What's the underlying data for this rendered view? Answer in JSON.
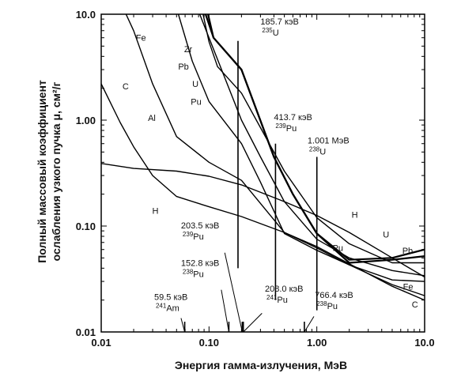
{
  "chart_data": {
    "type": "line",
    "xlabel": "Энергия гамма-излучения, МэВ",
    "ylabel_line1": "Полный массовый коэффициент",
    "ylabel_line2": "ослабления узкого пучка μ, см²/г",
    "xscale": "log",
    "yscale": "log",
    "xlim": [
      0.01,
      10.0
    ],
    "ylim": [
      0.01,
      10.0
    ],
    "x_ticks": [
      {
        "value": 0.01,
        "label": "0.01"
      },
      {
        "value": 0.1,
        "label": "0.10"
      },
      {
        "value": 1.0,
        "label": "1.00"
      },
      {
        "value": 10.0,
        "label": "10.0"
      }
    ],
    "y_ticks": [
      {
        "value": 0.01,
        "label": "0.01"
      },
      {
        "value": 0.1,
        "label": "0.10"
      },
      {
        "value": 1.0,
        "label": "1.00"
      },
      {
        "value": 10.0,
        "label": "10.0"
      }
    ],
    "series": [
      {
        "name": "H",
        "label_at": [
          0.034,
          0.13
        ],
        "points": [
          [
            0.01,
            0.39
          ],
          [
            0.02,
            0.35
          ],
          [
            0.05,
            0.33
          ],
          [
            0.1,
            0.295
          ],
          [
            0.2,
            0.245
          ],
          [
            0.5,
            0.17
          ],
          [
            1.0,
            0.126
          ],
          [
            2.0,
            0.087
          ],
          [
            5.0,
            0.05
          ],
          [
            10.0,
            0.033
          ]
        ]
      },
      {
        "name": "C",
        "label_at": [
          0.018,
          1.95
        ],
        "points": [
          [
            0.01,
            2.2
          ],
          [
            0.015,
            0.95
          ],
          [
            0.02,
            0.56
          ],
          [
            0.03,
            0.3
          ],
          [
            0.05,
            0.19
          ],
          [
            0.1,
            0.152
          ],
          [
            0.2,
            0.123
          ],
          [
            0.5,
            0.087
          ],
          [
            1.0,
            0.064
          ],
          [
            2.0,
            0.044
          ],
          [
            5.0,
            0.027
          ],
          [
            10.0,
            0.02
          ]
        ]
      },
      {
        "name": "Al",
        "label_at": [
          0.032,
          0.98
        ],
        "points": [
          [
            0.017,
            10.0
          ],
          [
            0.02,
            7.0
          ],
          [
            0.03,
            2.2
          ],
          [
            0.05,
            0.7
          ],
          [
            0.1,
            0.4
          ],
          [
            0.2,
            0.27
          ],
          [
            0.5,
            0.087
          ],
          [
            1.0,
            0.062
          ],
          [
            2.0,
            0.043
          ],
          [
            5.0,
            0.028
          ],
          [
            10.0,
            0.022
          ]
        ]
      },
      {
        "name": "Fe",
        "label_at": [
          0.026,
          5.6
        ],
        "points": [
          [
            0.052,
            10.0
          ],
          [
            0.07,
            3.6
          ],
          [
            0.1,
            1.5
          ],
          [
            0.2,
            0.6
          ],
          [
            0.3,
            0.26
          ],
          [
            0.5,
            0.085
          ],
          [
            1.0,
            0.059
          ],
          [
            2.0,
            0.043
          ],
          [
            5.0,
            0.031
          ],
          [
            10.0,
            0.03
          ]
        ]
      },
      {
        "name": "Zr",
        "label_at": [
          0.07,
          4.4
        ],
        "points": [
          [
            0.082,
            10.0
          ],
          [
            0.1,
            6.0
          ],
          [
            0.2,
            1.0
          ],
          [
            0.3,
            0.45
          ],
          [
            0.5,
            0.17
          ],
          [
            1.0,
            0.075
          ],
          [
            2.0,
            0.05
          ],
          [
            5.0,
            0.038
          ],
          [
            10.0,
            0.034
          ]
        ]
      },
      {
        "name": "Pb",
        "label_at": [
          0.065,
          3.0
        ],
        "points": [
          [
            0.088,
            10.0
          ],
          [
            0.1,
            5.5
          ],
          [
            0.12,
            3.2
          ],
          [
            0.2,
            1.8
          ],
          [
            0.5,
            0.33
          ],
          [
            1.0,
            0.12
          ],
          [
            2.0,
            0.068
          ],
          [
            5.0,
            0.045
          ],
          [
            10.0,
            0.045
          ]
        ]
      },
      {
        "name": "U",
        "label_at": [
          0.08,
          2.05
        ],
        "points": [
          [
            0.093,
            10.0
          ],
          [
            0.11,
            6.0
          ],
          [
            0.2,
            3.0
          ],
          [
            0.4,
            0.45
          ],
          [
            0.6,
            0.2
          ],
          [
            1.0,
            0.085
          ],
          [
            2.0,
            0.048
          ],
          [
            5.0,
            0.05
          ],
          [
            10.0,
            0.06
          ]
        ]
      },
      {
        "name": "Pu",
        "label_at": [
          0.085,
          1.4
        ],
        "points": [
          [
            0.098,
            10.0
          ],
          [
            0.11,
            6.0
          ],
          [
            0.2,
            3.0
          ],
          [
            0.4,
            0.45
          ],
          [
            0.6,
            0.2
          ],
          [
            1.0,
            0.085
          ],
          [
            2.0,
            0.045
          ],
          [
            5.0,
            0.048
          ],
          [
            10.0,
            0.052
          ]
        ]
      }
    ],
    "edge_labels": [
      {
        "name": "Pu",
        "at": [
          1.4,
          0.058
        ]
      },
      {
        "name": "U",
        "at": [
          4.1,
          0.078
        ]
      },
      {
        "name": "Pb",
        "at": [
          6.2,
          0.055
        ]
      },
      {
        "name": "H",
        "at": [
          2.1,
          0.12
        ]
      },
      {
        "name": "Fe",
        "at": [
          6.3,
          0.025
        ]
      },
      {
        "name": "C",
        "at": [
          7.6,
          0.017
        ]
      }
    ],
    "annotations": [
      {
        "energy": "185.7 кэВ",
        "isotope_mass": "235",
        "isotope": "U",
        "x": 0.1857,
        "line_top": 5.6,
        "line_bottom": 0.04,
        "text_at": [
          0.3,
          8.0
        ]
      },
      {
        "energy": "413.7 кэВ",
        "isotope_mass": "239",
        "isotope": "Pu",
        "x": 0.4137,
        "line_top": 0.6,
        "line_bottom": 0.02,
        "text_at": [
          0.4,
          1.0
        ]
      },
      {
        "energy": "1.001 МэВ",
        "isotope_mass": "238",
        "isotope": "U",
        "x": 1.001,
        "line_top": 0.45,
        "line_bottom": 0.016,
        "text_at": [
          0.82,
          0.6
        ]
      },
      {
        "energy": "203.5 кэВ",
        "isotope_mass": "239",
        "isotope": "Pu",
        "x": 0.2035,
        "line_bottom": 0.01,
        "text_at": [
          0.055,
          0.095
        ],
        "leader_from": [
          0.14,
          0.056
        ]
      },
      {
        "energy": "152.8 кэВ",
        "isotope_mass": "238",
        "isotope": "Pu",
        "x": 0.1528,
        "line_bottom": 0.01,
        "text_at": [
          0.055,
          0.042
        ],
        "leader_from": [
          0.13,
          0.025
        ]
      },
      {
        "energy": "59.5 кэВ",
        "isotope_mass": "241",
        "isotope": "Am",
        "x": 0.0595,
        "line_bottom": 0.01,
        "text_at": [
          0.031,
          0.02
        ],
        "leader_from": [
          0.055,
          0.0135
        ]
      },
      {
        "energy": "208.0 кэВ",
        "isotope_mass": "241",
        "isotope": "Pu",
        "x": 0.208,
        "line_bottom": 0.01,
        "text_at": [
          0.33,
          0.024
        ],
        "leader_from": [
          0.31,
          0.015
        ]
      },
      {
        "energy": "766.4 кэВ",
        "isotope_mass": "238",
        "isotope": "Pu",
        "x": 0.7664,
        "line_bottom": 0.01,
        "text_at": [
          0.96,
          0.021
        ],
        "leader_from": [
          0.94,
          0.014
        ]
      }
    ]
  }
}
